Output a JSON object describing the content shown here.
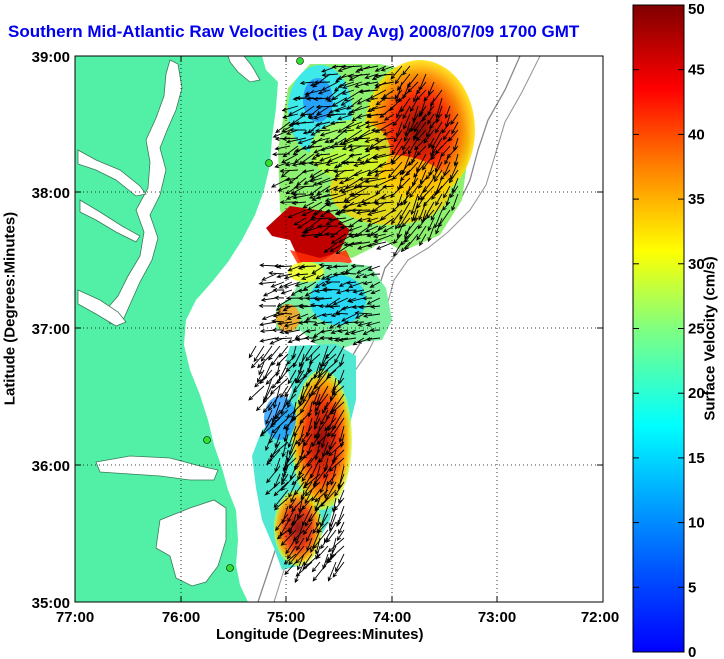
{
  "title": "Southern Mid-Atlantic Raw Velocities (1 Day Avg) 2008/07/09 1700 GMT",
  "xlabel": "Longitude (Degrees:Minutes)",
  "ylabel": "Latitude (Degrees:Minutes)",
  "colorbar": {
    "label": "Surface Velocity (cm/s)",
    "ticks": [
      "0",
      "5",
      "10",
      "15",
      "20",
      "25",
      "30",
      "35",
      "40",
      "45",
      "50"
    ],
    "min": 0,
    "max": 50
  },
  "x_ticks": [
    "77:00",
    "76:00",
    "75:00",
    "74:00",
    "73:00",
    "72:00"
  ],
  "y_ticks": [
    "39:00",
    "38:00",
    "37:00",
    "36:00",
    "35:00"
  ],
  "colors": {
    "land": "#52f0a6",
    "water": "#ffffff",
    "title": "#0000ee"
  }
}
